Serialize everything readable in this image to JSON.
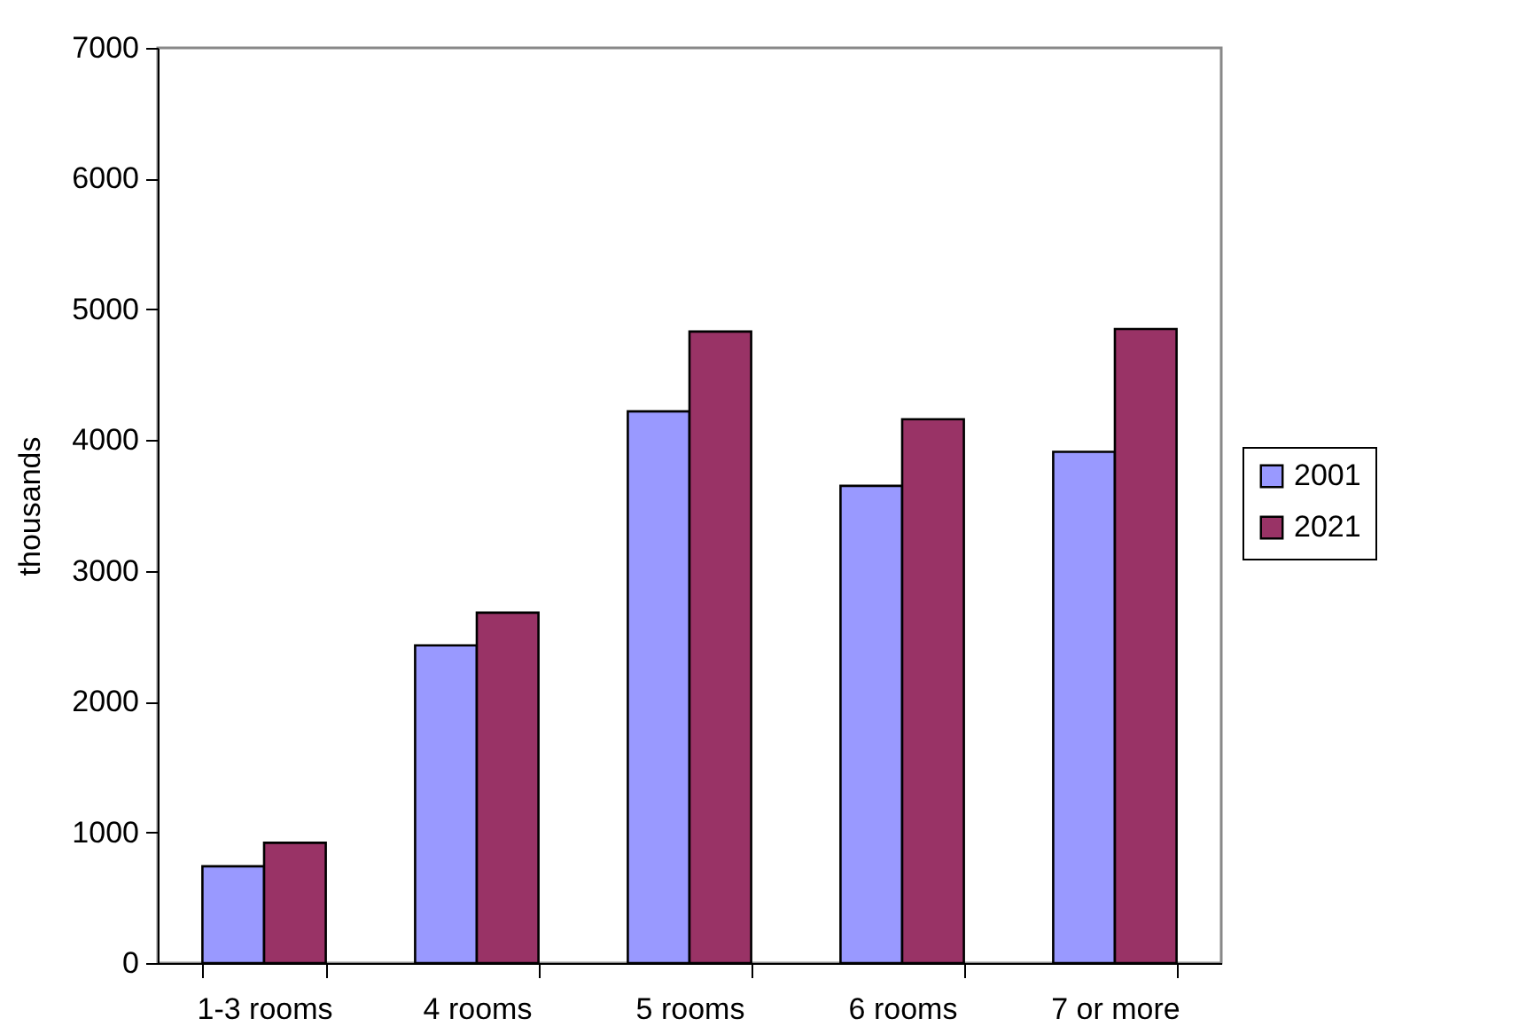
{
  "chart_data": {
    "type": "bar",
    "ylabel": "thousands",
    "categories": [
      "1-3 rooms",
      "4 rooms",
      "5 rooms",
      "6 rooms",
      "7 or more"
    ],
    "series": [
      {
        "name": "2001",
        "color": "#9999ff",
        "values": [
          740,
          2430,
          4220,
          3650,
          3910
        ]
      },
      {
        "name": "2021",
        "color": "#993366",
        "values": [
          920,
          2680,
          4830,
          4160,
          4850
        ]
      }
    ],
    "ylim": [
      0,
      7000
    ],
    "yticks": [
      0,
      1000,
      2000,
      3000,
      4000,
      5000,
      6000,
      7000
    ],
    "grid": false,
    "legend": "right"
  }
}
